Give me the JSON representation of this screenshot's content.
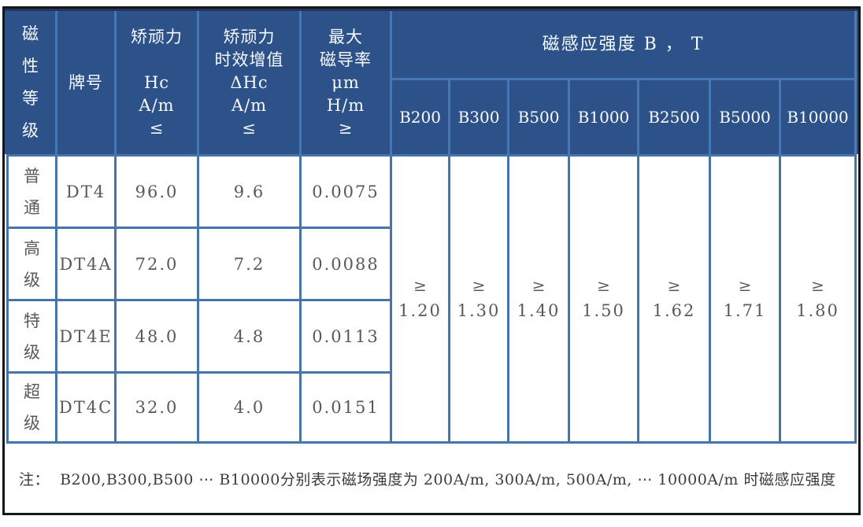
{
  "header": {
    "grade_label": "磁\n性\n等\n级",
    "brand_label": "牌号",
    "hc_label": "矫顽力\n\nHc\nA/m\n≤",
    "dhc_label": "矫顽力\n时效增值\nΔHc\nA/m\n≤",
    "mu_label": "最大\n磁导率\nμm\nH/m\n≥",
    "b_group_label": "磁感应强度 B ， T",
    "b_columns": [
      "B200",
      "B300",
      "B500",
      "B1000",
      "B2500",
      "B5000",
      "B10000"
    ]
  },
  "rows": [
    {
      "grade": "普\n通",
      "brand": "DT4",
      "hc": "96.0",
      "dhc": "9.6",
      "mu": "0.0075"
    },
    {
      "grade": "高\n级",
      "brand": "DT4A",
      "hc": "72.0",
      "dhc": "7.2",
      "mu": "0.0088"
    },
    {
      "grade": "特\n级",
      "brand": "DT4E",
      "hc": "48.0",
      "dhc": "4.8",
      "mu": "0.0113"
    },
    {
      "grade": "超\n级",
      "brand": "DT4C",
      "hc": "32.0",
      "dhc": "4.0",
      "mu": "0.0151"
    }
  ],
  "b_values": [
    {
      "op": "≥",
      "value": "1.20"
    },
    {
      "op": "≥",
      "value": "1.30"
    },
    {
      "op": "≥",
      "value": "1.40"
    },
    {
      "op": "≥",
      "value": "1.50"
    },
    {
      "op": "≥",
      "value": "1.62"
    },
    {
      "op": "≥",
      "value": "1.71"
    },
    {
      "op": "≥",
      "value": "1.80"
    }
  ],
  "note": "注：  B200,B300,B500 ⋯ B10000分别表示磁场强度为 200A/m, 300A/m, 500A/m, ⋯ 10000A/m 时磁感应强度",
  "colors": {
    "header_bg": "#2d5289",
    "header_divider": "#4776b5",
    "header_top_strip": "#21375f",
    "body_border": "#4575ab",
    "body_text": "#595959",
    "header_text": "#f7fafd",
    "outer_border": "#161616"
  }
}
